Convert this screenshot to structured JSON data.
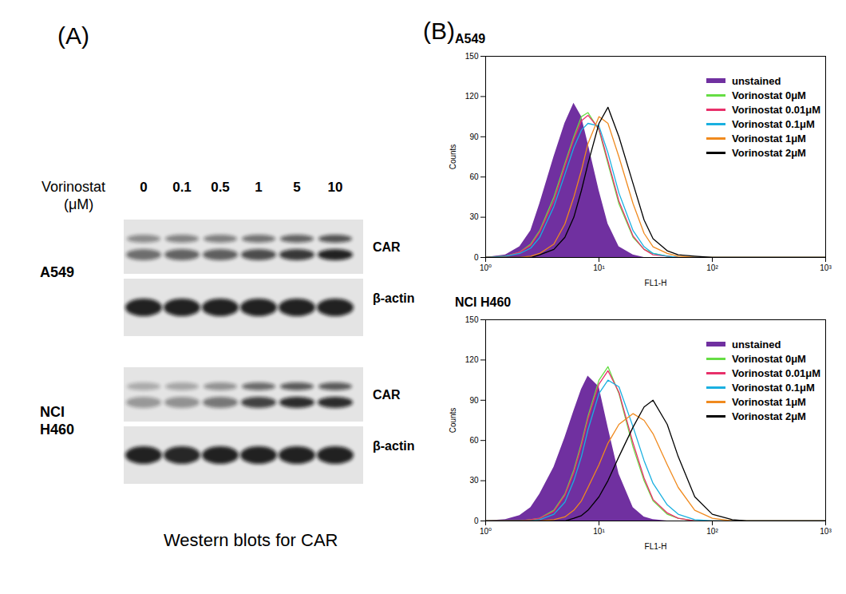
{
  "panel_labels": [
    "(A)",
    "(B)"
  ],
  "western_blot": {
    "treatment_label": "Vorinostat",
    "unit_label": "(μM)",
    "doses": [
      "0",
      "0.1",
      "0.5",
      "1",
      "5",
      "10"
    ],
    "rows": [
      {
        "cell_line": "A549",
        "car_label": "CAR",
        "control_label": "β-actin",
        "car_intensity": [
          0.55,
          0.6,
          0.62,
          0.7,
          0.8,
          0.9
        ],
        "control_intensity": [
          0.9,
          0.9,
          0.9,
          0.9,
          0.9,
          0.9
        ]
      },
      {
        "cell_line": "NCI H460",
        "car_label": "CAR",
        "control_label": "β-actin",
        "car_intensity": [
          0.35,
          0.38,
          0.5,
          0.75,
          0.85,
          0.85
        ],
        "control_intensity": [
          0.9,
          0.88,
          0.9,
          0.9,
          0.9,
          0.9
        ]
      }
    ],
    "caption": "Western blots for CAR"
  },
  "chart_data": [
    {
      "type": "line",
      "title": "A549",
      "x_label": "FL1-H",
      "y_label": "Counts",
      "log": "x",
      "xlim": [
        1,
        1000
      ],
      "xticks": [
        {
          "value": 1,
          "label": "10⁰"
        },
        {
          "value": 10,
          "label": "10¹"
        },
        {
          "value": 100,
          "label": "10²"
        },
        {
          "value": 1000,
          "label": "10³"
        }
      ],
      "ylim": [
        0,
        150
      ],
      "yticks": [
        0,
        30,
        60,
        90,
        120,
        150
      ],
      "legend": "upper right",
      "x": [
        1,
        1.5,
        2,
        2.5,
        3,
        4,
        5,
        6,
        7,
        8,
        10,
        12,
        15,
        20,
        25,
        30,
        40,
        50,
        70,
        100,
        150,
        200,
        1000
      ],
      "series": [
        {
          "name": "unstained",
          "type": "area",
          "color": "#7030a0",
          "values": [
            0,
            2,
            8,
            20,
            40,
            75,
            100,
            115,
            105,
            85,
            50,
            25,
            8,
            2,
            0,
            0,
            0,
            0,
            0,
            0,
            0,
            0,
            0
          ]
        },
        {
          "name": "Vorinostat 0μM",
          "type": "line",
          "color": "#66dd44",
          "values": [
            0,
            1,
            4,
            10,
            20,
            45,
            70,
            90,
            105,
            108,
            95,
            70,
            40,
            15,
            6,
            3,
            1,
            0,
            0,
            0,
            0,
            0,
            0
          ]
        },
        {
          "name": "Vorinostat 0.01μM",
          "type": "line",
          "color": "#e8306a",
          "values": [
            0,
            1,
            4,
            9,
            19,
            42,
            68,
            88,
            102,
            106,
            96,
            72,
            42,
            16,
            6,
            2,
            1,
            0,
            0,
            0,
            0,
            0,
            0
          ]
        },
        {
          "name": "Vorinostat 0.1μM",
          "type": "line",
          "color": "#1ab0e0",
          "values": [
            0,
            1,
            3,
            7,
            15,
            38,
            62,
            82,
            95,
            100,
            98,
            78,
            48,
            20,
            8,
            3,
            1,
            0,
            0,
            0,
            0,
            0,
            0
          ]
        },
        {
          "name": "Vorinostat 1μM",
          "type": "line",
          "color": "#f08a1e",
          "values": [
            0,
            0,
            0,
            1,
            3,
            10,
            25,
            45,
            65,
            85,
            105,
            100,
            75,
            40,
            18,
            8,
            3,
            1,
            0,
            0,
            0,
            0,
            0
          ]
        },
        {
          "name": "Vorinostat 2μM",
          "type": "line",
          "color": "#000000",
          "values": [
            0,
            0,
            0,
            0,
            2,
            6,
            15,
            30,
            50,
            70,
            100,
            112,
            90,
            55,
            28,
            14,
            5,
            2,
            1,
            0,
            0,
            0,
            0
          ]
        }
      ]
    },
    {
      "type": "line",
      "title": "NCI H460",
      "x_label": "FL1-H",
      "y_label": "Counts",
      "log": "x",
      "xlim": [
        1,
        1000
      ],
      "xticks": [
        {
          "value": 1,
          "label": "10⁰"
        },
        {
          "value": 10,
          "label": "10¹"
        },
        {
          "value": 100,
          "label": "10²"
        },
        {
          "value": 1000,
          "label": "10³"
        }
      ],
      "ylim": [
        0,
        150
      ],
      "yticks": [
        0,
        30,
        60,
        90,
        120,
        150
      ],
      "legend": "upper right",
      "x": [
        1,
        1.5,
        2,
        2.5,
        3,
        4,
        5,
        6,
        7,
        8,
        10,
        12,
        15,
        20,
        25,
        30,
        40,
        50,
        70,
        100,
        150,
        200,
        1000
      ],
      "series": [
        {
          "name": "unstained",
          "type": "area",
          "color": "#7030a0",
          "values": [
            0,
            1,
            4,
            10,
            20,
            40,
            62,
            82,
            98,
            108,
            100,
            70,
            35,
            10,
            3,
            1,
            0,
            0,
            0,
            0,
            0,
            0,
            0
          ]
        },
        {
          "name": "Vorinostat 0μM",
          "type": "line",
          "color": "#66dd44",
          "values": [
            0,
            0,
            0,
            1,
            2,
            8,
            20,
            38,
            58,
            78,
            105,
            115,
            95,
            55,
            30,
            15,
            5,
            2,
            0,
            0,
            0,
            0,
            0
          ]
        },
        {
          "name": "Vorinostat 0.01μM",
          "type": "line",
          "color": "#e8306a",
          "values": [
            0,
            0,
            0,
            1,
            2,
            7,
            19,
            36,
            56,
            76,
            102,
            112,
            96,
            58,
            32,
            16,
            6,
            2,
            0,
            0,
            0,
            0,
            0
          ]
        },
        {
          "name": "Vorinostat 0.1μM",
          "type": "line",
          "color": "#1ab0e0",
          "values": [
            0,
            0,
            0,
            0,
            1,
            5,
            14,
            30,
            48,
            68,
            95,
            105,
            100,
            70,
            45,
            28,
            12,
            5,
            1,
            0,
            0,
            0,
            0
          ]
        },
        {
          "name": "Vorinostat 1μM",
          "type": "line",
          "color": "#f08a1e",
          "values": [
            0,
            0,
            0,
            0,
            0,
            1,
            3,
            8,
            15,
            25,
            42,
            58,
            72,
            80,
            75,
            65,
            42,
            25,
            8,
            2,
            0,
            0,
            0
          ]
        },
        {
          "name": "Vorinostat 2μM",
          "type": "line",
          "color": "#000000",
          "values": [
            0,
            0,
            0,
            0,
            0,
            0,
            0,
            2,
            4,
            8,
            18,
            30,
            48,
            70,
            85,
            90,
            72,
            48,
            18,
            5,
            1,
            0,
            0
          ]
        }
      ]
    }
  ]
}
